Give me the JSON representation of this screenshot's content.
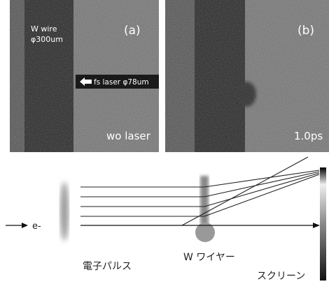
{
  "panel_a": {
    "label": "(a)",
    "wire_label": "W wire",
    "wire_size": "φ300um",
    "laser_label": "fs laser φ78um",
    "caption": "wo laser"
  },
  "panel_b": {
    "label": "(b)",
    "caption": "1.0ps"
  },
  "diagram": {
    "electron_label": "e-",
    "pulse_label": "電子パルス",
    "wire_label": "W ワイヤー",
    "screen_label": "スクリーン"
  }
}
